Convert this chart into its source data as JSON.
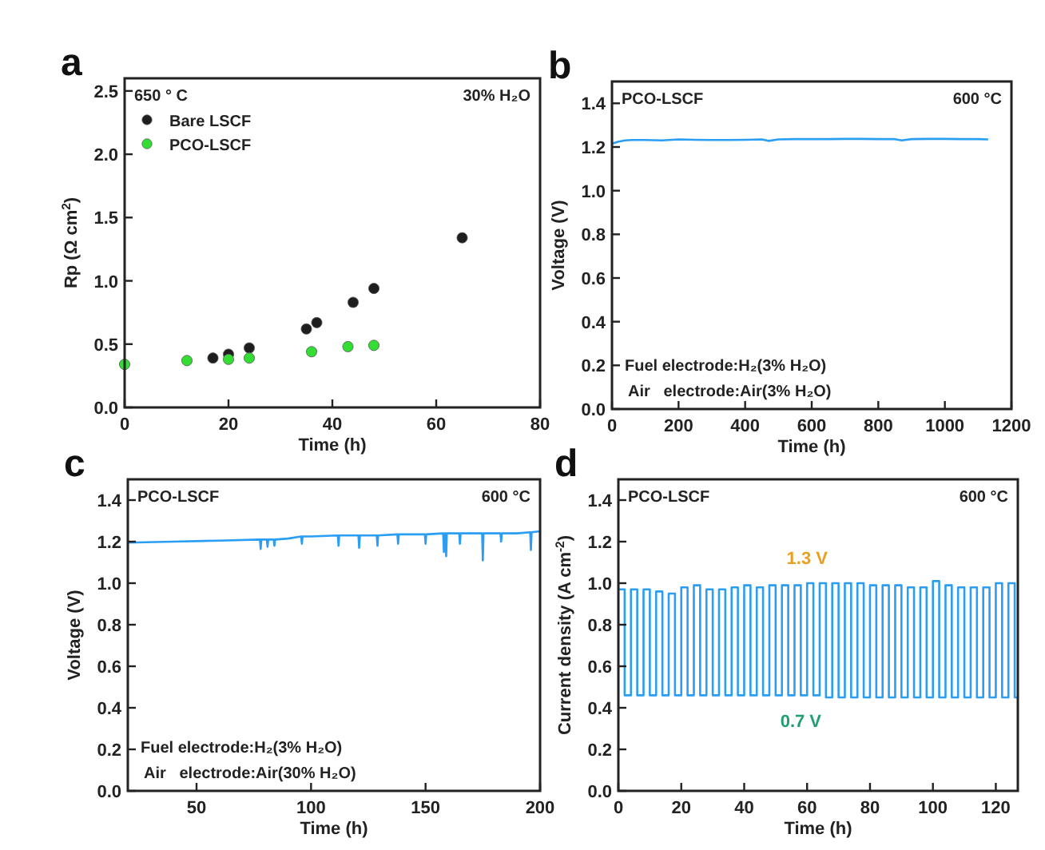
{
  "chart_data": [
    {
      "type": "scatter",
      "title": "a",
      "xlabel": "Time (h)",
      "ylabel": "Rp (Ω cm$^{2}$)",
      "xlim": [
        0,
        80
      ],
      "ylim": [
        0,
        2.6
      ],
      "xticks": [
        0,
        20,
        40,
        60,
        80
      ],
      "yticks": [
        {
          "value": 0,
          "label": "0.0"
        },
        {
          "value": 0.5,
          "label": "0.5"
        },
        {
          "value": 1,
          "label": "1.0"
        },
        {
          "value": 1.5,
          "label": "1.5"
        },
        {
          "value": 2,
          "label": "2.0"
        },
        {
          "value": 2.5,
          "label": "2.5"
        }
      ],
      "marker": "circle",
      "legend": "top left",
      "grid": false,
      "annotations": [
        "650 ° C",
        "30% H₂O"
      ],
      "series": [
        {
          "name": "Bare LSCF",
          "color": "#1e1e1e",
          "x": [
            17,
            20,
            24,
            35,
            37,
            44,
            48,
            65
          ],
          "values": [
            0.39,
            0.42,
            0.47,
            0.62,
            0.67,
            0.83,
            0.94,
            1.34
          ]
        },
        {
          "name": "PCO-LSCF",
          "color": "#33dd33",
          "x": [
            0,
            12,
            20,
            24,
            36,
            43,
            48
          ],
          "values": [
            0.34,
            0.37,
            0.38,
            0.39,
            0.44,
            0.48,
            0.49
          ]
        }
      ]
    },
    {
      "type": "line",
      "title": "b",
      "xlabel": "Time (h)",
      "ylabel": "Voltage (V)",
      "xlim": [
        0,
        1200
      ],
      "ylim": [
        0,
        1.5
      ],
      "xticks": [
        0,
        200,
        400,
        600,
        800,
        1000,
        1200
      ],
      "yticks": [
        {
          "value": 0,
          "label": "0.0"
        },
        {
          "value": 0.2,
          "label": "0.2"
        },
        {
          "value": 0.4,
          "label": "0.4"
        },
        {
          "value": 0.6,
          "label": "0.6"
        },
        {
          "value": 0.8,
          "label": "0.8"
        },
        {
          "value": 1,
          "label": "1.0"
        },
        {
          "value": 1.2,
          "label": "1.2"
        },
        {
          "value": 1.4,
          "label": "1.4"
        }
      ],
      "grid": false,
      "annotations": [
        "PCO-LSCF",
        "600 °C",
        "Fuel electrode:H₂(3% H₂O)",
        "Air   electrode:Air(3% H₂O)"
      ],
      "series": [
        {
          "color": "#2a9df4",
          "x": [
            0,
            10,
            20,
            40,
            60,
            100,
            150,
            200,
            250,
            300,
            350,
            400,
            450,
            470,
            500,
            550,
            600,
            650,
            700,
            750,
            800,
            850,
            870,
            900,
            950,
            1000,
            1050,
            1100,
            1130
          ],
          "values": [
            1.215,
            1.22,
            1.225,
            1.23,
            1.232,
            1.232,
            1.23,
            1.235,
            1.233,
            1.232,
            1.232,
            1.233,
            1.235,
            1.228,
            1.235,
            1.236,
            1.236,
            1.236,
            1.237,
            1.237,
            1.236,
            1.236,
            1.23,
            1.236,
            1.237,
            1.237,
            1.236,
            1.236,
            1.235
          ]
        }
      ]
    },
    {
      "type": "line",
      "title": "c",
      "xlabel": "Time (h)",
      "ylabel": "Voltage (V)",
      "xlim": [
        20,
        200
      ],
      "ylim": [
        0,
        1.5
      ],
      "xticks": [
        50,
        100,
        150,
        200
      ],
      "yticks": [
        {
          "value": 0,
          "label": "0.0"
        },
        {
          "value": 0.2,
          "label": "0.2"
        },
        {
          "value": 0.4,
          "label": "0.4"
        },
        {
          "value": 0.6,
          "label": "0.6"
        },
        {
          "value": 0.8,
          "label": "0.8"
        },
        {
          "value": 1,
          "label": "1.0"
        },
        {
          "value": 1.2,
          "label": "1.2"
        },
        {
          "value": 1.4,
          "label": "1.4"
        }
      ],
      "grid": false,
      "annotations": [
        "PCO-LSCF",
        "600 °C",
        "Fuel electrode:H₂(3% H₂O)",
        "Air   electrode:Air(30% H₂O)"
      ],
      "series": [
        {
          "color": "#2a9df4",
          "x": [
            20,
            40,
            60,
            77.7,
            78,
            78.3,
            80.7,
            81,
            81.3,
            83.7,
            84,
            84.3,
            90,
            95.7,
            96,
            96.3,
            100,
            111.7,
            112,
            112.3,
            120.7,
            121,
            121.3,
            128.7,
            129,
            129.3,
            137.7,
            138,
            138.3,
            140,
            149.7,
            150,
            150.3,
            157.7,
            158,
            158.3,
            158.7,
            159,
            159.3,
            164.7,
            165,
            165.3,
            174.7,
            175,
            175.3,
            182.7,
            183,
            183.3,
            190,
            195.7,
            196,
            196.3,
            200
          ],
          "values": [
            1.195,
            1.2,
            1.205,
            1.21,
            1.165,
            1.21,
            1.21,
            1.175,
            1.21,
            1.21,
            1.18,
            1.21,
            1.215,
            1.225,
            1.19,
            1.225,
            1.225,
            1.23,
            1.18,
            1.23,
            1.23,
            1.17,
            1.23,
            1.23,
            1.18,
            1.23,
            1.235,
            1.19,
            1.235,
            1.235,
            1.235,
            1.19,
            1.235,
            1.24,
            1.15,
            1.24,
            1.24,
            1.13,
            1.24,
            1.24,
            1.19,
            1.24,
            1.24,
            1.11,
            1.24,
            1.24,
            1.2,
            1.24,
            1.24,
            1.245,
            1.16,
            1.245,
            1.25
          ]
        }
      ]
    },
    {
      "type": "step",
      "title": "d",
      "xlabel": "Time (h)",
      "ylabel": "Current density (A cm$^{-2}$)",
      "xlim": [
        0,
        127
      ],
      "ylim": [
        0,
        1.5
      ],
      "xticks": [
        0,
        20,
        40,
        60,
        80,
        100,
        120
      ],
      "yticks": [
        {
          "value": 0,
          "label": "0.0"
        },
        {
          "value": 0.2,
          "label": "0.2"
        },
        {
          "value": 0.4,
          "label": "0.4"
        },
        {
          "value": 0.6,
          "label": "0.6"
        },
        {
          "value": 0.8,
          "label": "0.8"
        },
        {
          "value": 1,
          "label": "1.0"
        },
        {
          "value": 1.2,
          "label": "1.2"
        },
        {
          "value": 1.4,
          "label": "1.4"
        }
      ],
      "grid": false,
      "annotations": [
        "PCO-LSCF",
        "600 °C",
        {
          "text": "1.3 V",
          "x": 60,
          "y": 1.0
        },
        {
          "text": "0.7 V",
          "x": 58,
          "y": 0.46
        }
      ],
      "series": [
        {
          "color": "#2a9df4",
          "x": [
            0,
            2,
            4,
            6,
            8,
            10,
            12,
            14,
            16,
            18,
            20,
            22,
            24,
            26,
            28,
            30,
            32,
            34,
            36,
            38,
            40,
            42,
            44,
            46,
            48,
            50,
            52,
            54,
            56,
            58,
            60,
            62,
            64,
            66,
            68,
            70,
            72,
            74,
            76,
            78,
            80,
            82,
            84,
            86,
            88,
            90,
            92,
            94,
            96,
            98,
            100,
            102,
            104,
            106,
            108,
            110,
            112,
            114,
            116,
            118,
            120,
            122,
            124,
            126,
            127
          ],
          "values": [
            0.97,
            0.46,
            0.97,
            0.46,
            0.97,
            0.46,
            0.96,
            0.46,
            0.95,
            0.46,
            0.98,
            0.46,
            0.99,
            0.46,
            0.97,
            0.46,
            0.97,
            0.46,
            0.98,
            0.46,
            0.99,
            0.46,
            0.98,
            0.46,
            0.99,
            0.46,
            0.99,
            0.46,
            0.99,
            0.46,
            1.0,
            0.46,
            1.0,
            0.45,
            1.0,
            0.45,
            1.0,
            0.45,
            1.0,
            0.45,
            0.99,
            0.45,
            0.99,
            0.45,
            0.99,
            0.45,
            0.98,
            0.45,
            0.98,
            0.45,
            1.01,
            0.45,
            0.99,
            0.45,
            0.98,
            0.45,
            0.98,
            0.45,
            0.98,
            0.45,
            1.0,
            0.45,
            1.0,
            0.45,
            0.45
          ]
        }
      ]
    }
  ]
}
